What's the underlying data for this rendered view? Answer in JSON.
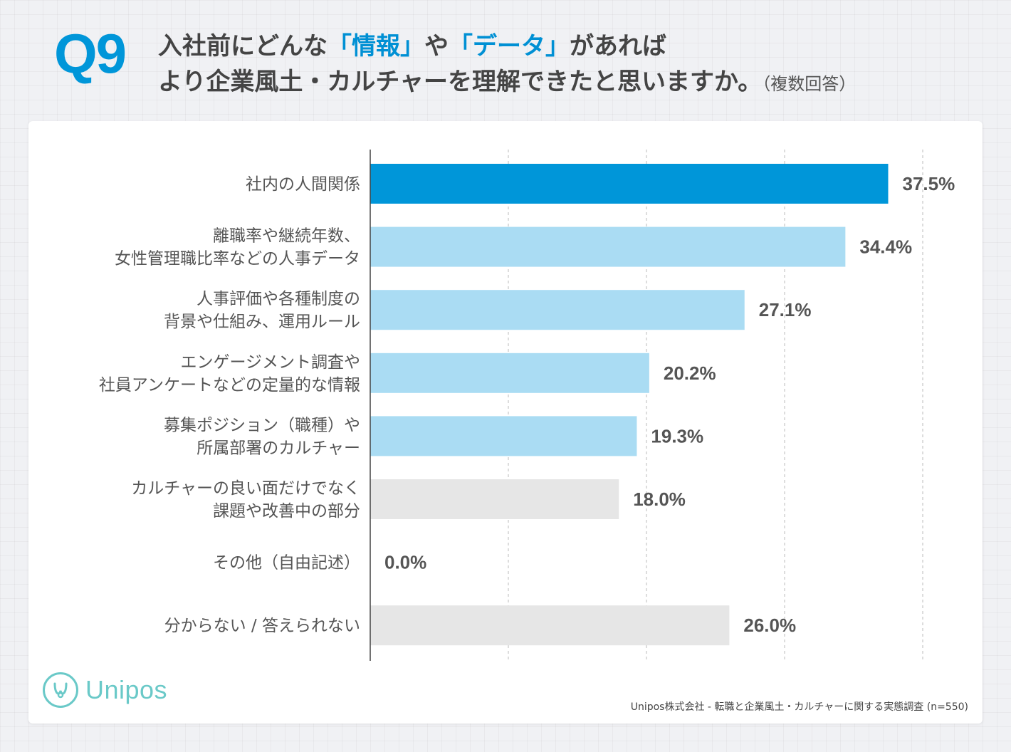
{
  "header": {
    "q_label": "Q9",
    "line1_a": "入社前にどんな",
    "line1_hl1": "「情報」",
    "line1_b": "や",
    "line1_hl2": "「データ」",
    "line1_c": "があれば",
    "line2_main": "より企業風土・カルチャーを理解できたと思いますか。",
    "line2_note": "（複数回答）"
  },
  "brand": {
    "logo_text": "Unipos"
  },
  "footer": {
    "source": "Unipos株式会社 - 転職と企業風土・カルチャーに関する実態調査 (n=550)"
  },
  "colors": {
    "accent": "#0096d9",
    "highlight": "#aadcf3",
    "neutral": "#e6e6e6",
    "logo": "#6ac9c8"
  },
  "chart_data": {
    "type": "bar",
    "orientation": "horizontal",
    "xlim": [
      0,
      45
    ],
    "grid": true,
    "categories": [
      [
        "社内の人間関係"
      ],
      [
        "離職率や継続年数、",
        "女性管理職比率などの人事データ"
      ],
      [
        "人事評価や各種制度の",
        "背景や仕組み、運用ルール"
      ],
      [
        "エンゲージメント調査や",
        "社員アンケートなどの定量的な情報"
      ],
      [
        "募集ポジション（職種）や",
        "所属部署のカルチャー"
      ],
      [
        "カルチャーの良い面だけでなく",
        "課題や改善中の部分"
      ],
      [
        "その他（自由記述）"
      ],
      [
        "分からない / 答えられない"
      ]
    ],
    "values": [
      37.5,
      34.4,
      27.1,
      20.2,
      19.3,
      18.0,
      0.0,
      26.0
    ],
    "value_labels": [
      "37.5%",
      "34.4%",
      "27.1%",
      "20.2%",
      "19.3%",
      "18.0%",
      "0.0%",
      "26.0%"
    ],
    "bar_colors": [
      "#0096d9",
      "#aadcf3",
      "#aadcf3",
      "#aadcf3",
      "#aadcf3",
      "#e6e6e6",
      "#e6e6e6",
      "#e6e6e6"
    ]
  }
}
